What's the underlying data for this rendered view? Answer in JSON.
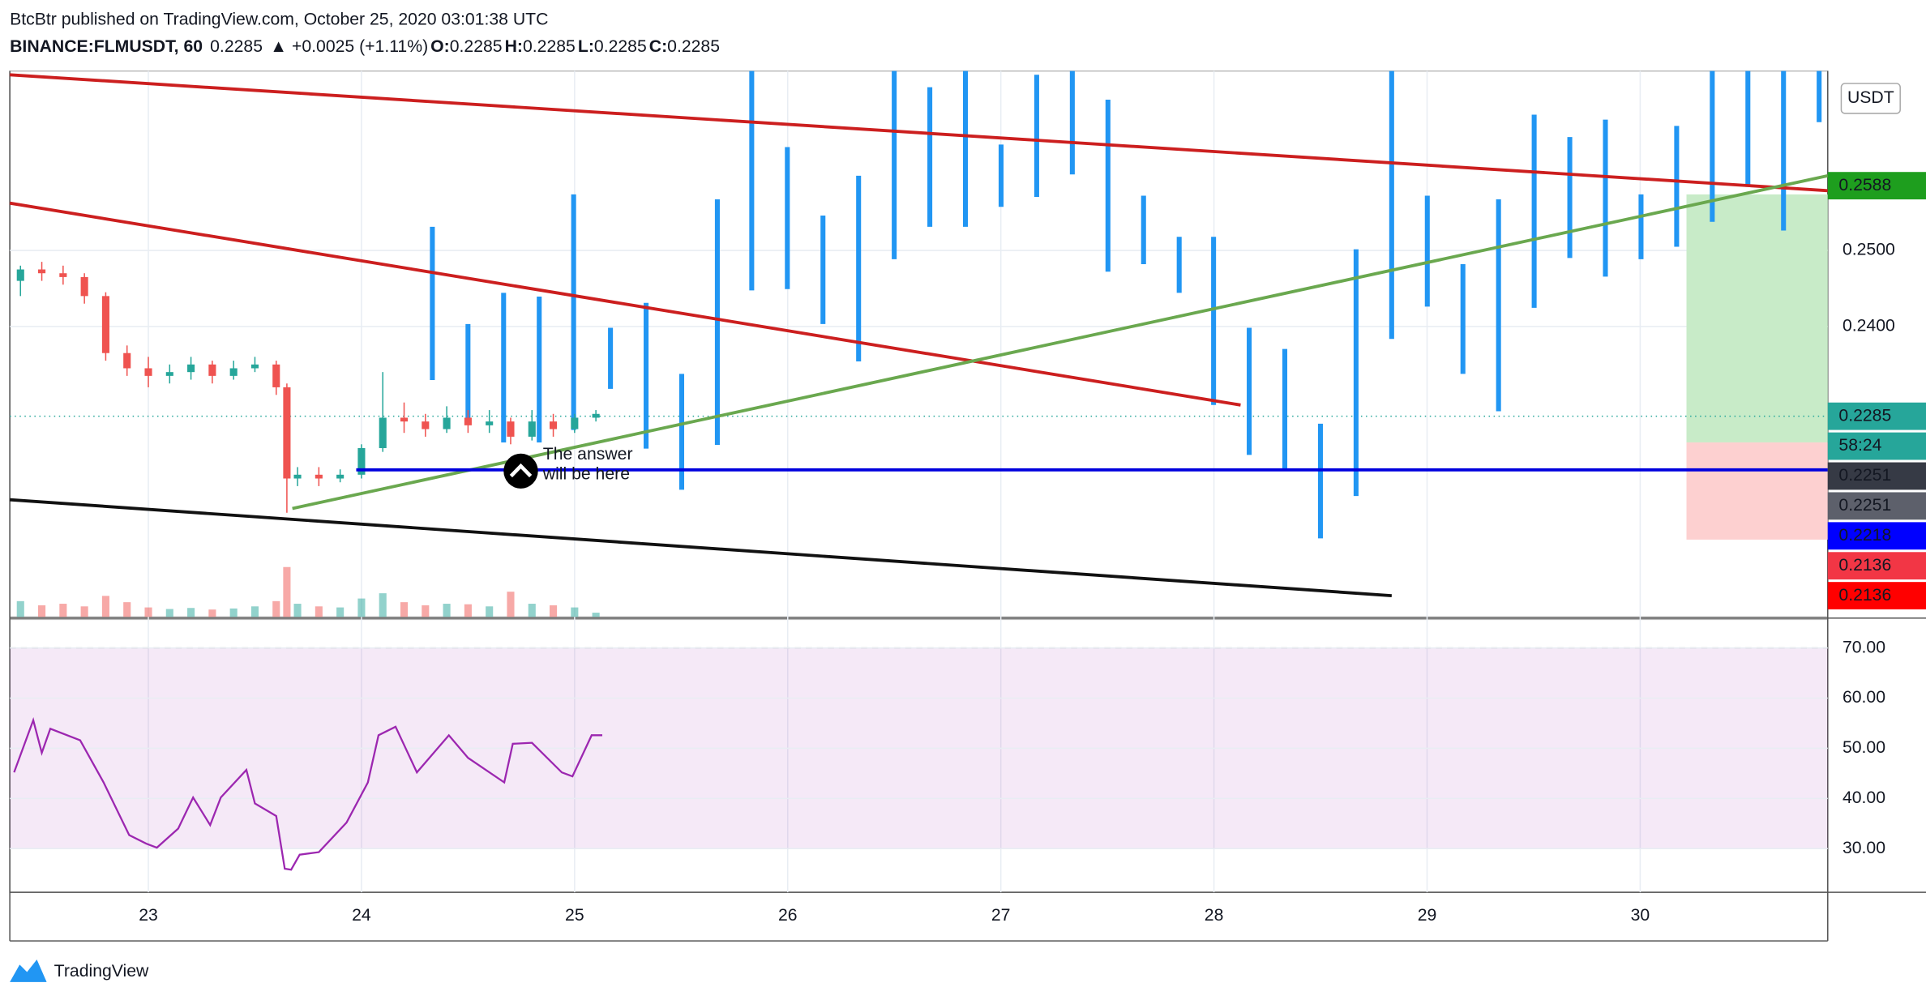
{
  "header": {
    "publisher": "BtcBtr published on TradingView.com, October 25, 2020 03:01:38 UTC",
    "symbol": "BINANCE:FLMUSDT, 60",
    "last": "0.2285",
    "change": "▲ +0.0025 (+1.11%)",
    "ohlc": [
      {
        "k": "O:",
        "v": "0.2285"
      },
      {
        "k": "H:",
        "v": "0.2285"
      },
      {
        "k": "L:",
        "v": "0.2285"
      },
      {
        "k": "C:",
        "v": "0.2285"
      }
    ]
  },
  "chart_data": [
    {
      "type": "candlestick",
      "x": [
        22.4,
        22.5,
        22.6,
        22.7,
        22.8,
        22.9,
        23.0,
        23.1,
        23.2,
        23.3,
        23.4,
        23.5,
        23.6,
        23.65,
        23.7,
        23.8,
        23.9,
        24.0,
        24.1,
        24.2,
        24.3,
        24.4,
        24.5,
        24.6,
        24.7,
        24.8,
        24.9,
        25.0,
        25.1
      ],
      "open": [
        0.246,
        0.2475,
        0.247,
        0.2465,
        0.244,
        0.2365,
        0.2345,
        0.2335,
        0.234,
        0.235,
        0.2335,
        0.2345,
        0.235,
        0.232,
        0.22,
        0.2205,
        0.22,
        0.2205,
        0.224,
        0.228,
        0.2275,
        0.2265,
        0.228,
        0.227,
        0.2275,
        0.2255,
        0.2275,
        0.2265,
        0.228
      ],
      "high": [
        0.248,
        0.2485,
        0.248,
        0.247,
        0.2445,
        0.2375,
        0.236,
        0.235,
        0.236,
        0.2355,
        0.2355,
        0.236,
        0.2355,
        0.2325,
        0.2215,
        0.2215,
        0.2212,
        0.2245,
        0.234,
        0.23,
        0.2285,
        0.2295,
        0.229,
        0.229,
        0.228,
        0.229,
        0.2285,
        0.2285,
        0.229
      ],
      "low": [
        0.244,
        0.246,
        0.2455,
        0.243,
        0.2355,
        0.2335,
        0.232,
        0.2325,
        0.233,
        0.2325,
        0.233,
        0.234,
        0.231,
        0.2155,
        0.219,
        0.219,
        0.2195,
        0.22,
        0.2235,
        0.226,
        0.2255,
        0.226,
        0.226,
        0.226,
        0.2245,
        0.225,
        0.2255,
        0.226,
        0.2275
      ],
      "close": [
        0.2475,
        0.247,
        0.2465,
        0.244,
        0.2365,
        0.2345,
        0.2335,
        0.234,
        0.235,
        0.2335,
        0.2345,
        0.235,
        0.232,
        0.22,
        0.2205,
        0.22,
        0.2205,
        0.224,
        0.228,
        0.2275,
        0.2265,
        0.228,
        0.227,
        0.2275,
        0.2255,
        0.2275,
        0.2265,
        0.228,
        0.2285
      ],
      "volume": [
        30,
        22,
        25,
        20,
        40,
        28,
        18,
        15,
        17,
        14,
        16,
        20,
        30,
        95,
        25,
        20,
        18,
        35,
        45,
        28,
        22,
        25,
        24,
        20,
        48,
        25,
        22,
        18,
        8
      ],
      "up_color": "#26a69a",
      "down_color": "#ef5350",
      "xlim": [
        22.35,
        30.88
      ],
      "ylim": [
        0.2018,
        0.2736
      ],
      "xticks": [
        23,
        24,
        25,
        26,
        27,
        28,
        29,
        30
      ],
      "yticks": [
        {
          "value": 0.24,
          "label": "0.2400"
        },
        {
          "value": 0.25,
          "label": "0.2500"
        }
      ]
    },
    {
      "type": "line",
      "color": "#9c27b0",
      "x": [
        22.37,
        22.46,
        22.5,
        22.54,
        22.68,
        22.79,
        22.91,
        22.99,
        23.04,
        23.14,
        23.21,
        23.29,
        23.34,
        23.46,
        23.5,
        23.6,
        23.64,
        23.67,
        23.71,
        23.8,
        23.93,
        24.03,
        24.08,
        24.16,
        24.26,
        24.41,
        24.5,
        24.67,
        24.71,
        24.8,
        24.94,
        24.99,
        25.08,
        25.13
      ],
      "values": [
        45.2,
        55.6,
        49.1,
        53.9,
        51.6,
        43.2,
        32.7,
        31.0,
        30.2,
        34.0,
        40.2,
        34.7,
        40.2,
        45.7,
        39.0,
        36.5,
        26.0,
        25.8,
        28.8,
        29.3,
        35.2,
        43.2,
        52.6,
        54.3,
        45.2,
        52.6,
        48.1,
        43.2,
        50.9,
        51.1,
        45.2,
        44.4,
        52.6,
        52.6
      ],
      "xlim": [
        22.35,
        30.88
      ],
      "ylim": [
        21.3,
        75.7
      ],
      "band": [
        30,
        70
      ],
      "yticks": [
        {
          "value": 30,
          "label": "30.00"
        },
        {
          "value": 40,
          "label": "40.00"
        },
        {
          "value": 50,
          "label": "50.00"
        },
        {
          "value": 60,
          "label": "60.00"
        },
        {
          "value": 70,
          "label": "70.00"
        }
      ]
    }
  ],
  "currency": "USDT",
  "price_labels": [
    {
      "text": "0.2588",
      "color": "#1e9e1e"
    },
    {
      "text": "0.2285",
      "color": "#26a69a"
    },
    {
      "text": "58:24",
      "color": "#26a69a"
    },
    {
      "text": "0.2251",
      "color": "#363a45"
    },
    {
      "text": "0.2251",
      "color": "#5d606b"
    },
    {
      "text": "0.2218",
      "color": "#0000ff"
    },
    {
      "text": "0.2136",
      "color": "#f23645"
    },
    {
      "text": "0.2136",
      "color": "#ff0000"
    }
  ],
  "annotation": [
    "The answer",
    "will be here"
  ],
  "logo": "TradingView"
}
